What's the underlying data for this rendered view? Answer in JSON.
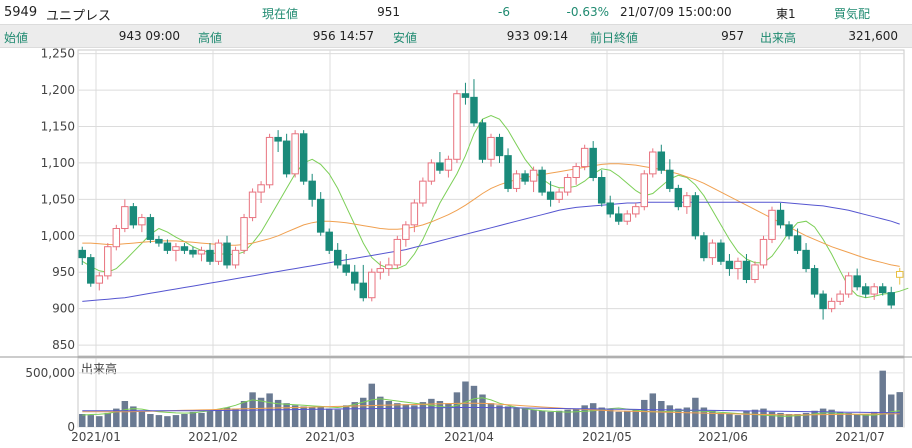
{
  "header": {
    "code": "5949",
    "name": "ユニプレス",
    "price_label": "現在値",
    "price": "951",
    "change": "-6",
    "change_pct": "-0.63%",
    "datetime": "21/07/09  15:00:00",
    "market": "東1",
    "order_book": "買気配"
  },
  "quote": {
    "open_label": "始値",
    "open": "943 09:00",
    "high_label": "高値",
    "high": "956 14:57",
    "low_label": "安値",
    "low": "933 09:14",
    "prev_close_label": "前日終値",
    "prev_close": "957",
    "volume_label": "出来高",
    "volume": "321,600"
  },
  "colors": {
    "up": "#e8737f",
    "down": "#1a8a7a",
    "ma_short": "#7ccf57",
    "ma_mid": "#f0a050",
    "ma_long": "#5555d0",
    "label": "#1f8a70",
    "today": "#e8c040"
  },
  "chart_data": {
    "type": "candlestick",
    "ylim": [
      835,
      1255
    ],
    "y_ticks": [
      "1,250",
      "1,200",
      "1,150",
      "1,100",
      "1,050",
      "1,000",
      "950",
      "900",
      "850"
    ],
    "volume_label": "出来高",
    "volume_ylim": [
      0,
      600000
    ],
    "volume_ticks": [
      "500,000",
      "0"
    ],
    "x_labels": [
      "2021/01",
      "2021/02",
      "2021/03",
      "2021/04",
      "2021/05",
      "2021/06",
      "2021/07"
    ],
    "candles": [
      [
        980,
        985,
        960,
        970
      ],
      [
        970,
        975,
        930,
        935
      ],
      [
        935,
        950,
        925,
        945
      ],
      [
        945,
        990,
        940,
        985
      ],
      [
        985,
        1015,
        980,
        1010
      ],
      [
        1010,
        1050,
        1005,
        1040
      ],
      [
        1040,
        1045,
        1010,
        1015
      ],
      [
        1015,
        1030,
        1005,
        1025
      ],
      [
        1025,
        1030,
        990,
        995
      ],
      [
        995,
        1000,
        985,
        990
      ],
      [
        990,
        995,
        975,
        980
      ],
      [
        980,
        990,
        965,
        985
      ],
      [
        985,
        990,
        975,
        980
      ],
      [
        980,
        985,
        970,
        975
      ],
      [
        975,
        985,
        965,
        980
      ],
      [
        980,
        990,
        960,
        965
      ],
      [
        965,
        995,
        960,
        990
      ],
      [
        990,
        1000,
        955,
        960
      ],
      [
        960,
        985,
        955,
        980
      ],
      [
        980,
        1030,
        975,
        1025
      ],
      [
        1025,
        1065,
        1020,
        1060
      ],
      [
        1060,
        1075,
        1045,
        1070
      ],
      [
        1070,
        1140,
        1065,
        1135
      ],
      [
        1135,
        1145,
        1115,
        1130
      ],
      [
        1130,
        1140,
        1080,
        1085
      ],
      [
        1085,
        1145,
        1080,
        1140
      ],
      [
        1140,
        1145,
        1070,
        1075
      ],
      [
        1075,
        1085,
        1040,
        1050
      ],
      [
        1050,
        1060,
        1000,
        1005
      ],
      [
        1005,
        1010,
        975,
        980
      ],
      [
        980,
        990,
        955,
        960
      ],
      [
        960,
        975,
        945,
        950
      ],
      [
        950,
        960,
        925,
        935
      ],
      [
        935,
        960,
        910,
        915
      ],
      [
        915,
        955,
        910,
        950
      ],
      [
        950,
        965,
        940,
        955
      ],
      [
        955,
        970,
        945,
        960
      ],
      [
        960,
        1000,
        955,
        995
      ],
      [
        995,
        1020,
        985,
        1015
      ],
      [
        1015,
        1050,
        1005,
        1045
      ],
      [
        1045,
        1080,
        1040,
        1075
      ],
      [
        1075,
        1105,
        1070,
        1100
      ],
      [
        1100,
        1115,
        1085,
        1090
      ],
      [
        1090,
        1110,
        1080,
        1105
      ],
      [
        1105,
        1200,
        1100,
        1195
      ],
      [
        1195,
        1210,
        1180,
        1190
      ],
      [
        1190,
        1215,
        1150,
        1155
      ],
      [
        1155,
        1160,
        1100,
        1105
      ],
      [
        1105,
        1140,
        1095,
        1135
      ],
      [
        1135,
        1140,
        1100,
        1110
      ],
      [
        1110,
        1120,
        1060,
        1065
      ],
      [
        1065,
        1090,
        1060,
        1085
      ],
      [
        1085,
        1090,
        1070,
        1075
      ],
      [
        1075,
        1095,
        1060,
        1090
      ],
      [
        1090,
        1095,
        1055,
        1060
      ],
      [
        1060,
        1075,
        1040,
        1050
      ],
      [
        1050,
        1065,
        1045,
        1060
      ],
      [
        1060,
        1085,
        1055,
        1080
      ],
      [
        1080,
        1100,
        1070,
        1095
      ],
      [
        1095,
        1125,
        1090,
        1120
      ],
      [
        1120,
        1130,
        1075,
        1080
      ],
      [
        1080,
        1090,
        1040,
        1045
      ],
      [
        1045,
        1055,
        1025,
        1030
      ],
      [
        1030,
        1040,
        1015,
        1020
      ],
      [
        1020,
        1035,
        1015,
        1030
      ],
      [
        1030,
        1045,
        1025,
        1040
      ],
      [
        1040,
        1090,
        1035,
        1085
      ],
      [
        1085,
        1120,
        1080,
        1115
      ],
      [
        1115,
        1125,
        1085,
        1090
      ],
      [
        1090,
        1105,
        1060,
        1065
      ],
      [
        1065,
        1070,
        1035,
        1040
      ],
      [
        1040,
        1060,
        1030,
        1055
      ],
      [
        1055,
        1060,
        995,
        1000
      ],
      [
        1000,
        1005,
        965,
        970
      ],
      [
        970,
        995,
        960,
        990
      ],
      [
        990,
        995,
        960,
        965
      ],
      [
        965,
        975,
        945,
        955
      ],
      [
        955,
        970,
        940,
        965
      ],
      [
        965,
        975,
        935,
        940
      ],
      [
        940,
        965,
        935,
        960
      ],
      [
        960,
        1000,
        955,
        995
      ],
      [
        995,
        1040,
        990,
        1035
      ],
      [
        1035,
        1045,
        1010,
        1015
      ],
      [
        1015,
        1020,
        995,
        1000
      ],
      [
        1000,
        1010,
        975,
        980
      ],
      [
        980,
        990,
        950,
        955
      ],
      [
        955,
        960,
        915,
        920
      ],
      [
        920,
        925,
        885,
        900
      ],
      [
        900,
        915,
        895,
        910
      ],
      [
        910,
        925,
        905,
        920
      ],
      [
        920,
        950,
        915,
        945
      ],
      [
        945,
        955,
        925,
        930
      ],
      [
        930,
        935,
        915,
        920
      ],
      [
        920,
        935,
        912,
        930
      ],
      [
        930,
        935,
        918,
        922
      ],
      [
        922,
        930,
        900,
        905
      ],
      [
        943,
        956,
        933,
        951
      ]
    ],
    "series": [
      {
        "name": "short",
        "values": [
          965,
          958,
          952,
          950,
          955,
          966,
          978,
          990,
          1002,
          1010,
          1005,
          998,
          992,
          985,
          980,
          977,
          975,
          975,
          974,
          978,
          990,
          1005,
          1025,
          1045,
          1065,
          1085,
          1100,
          1105,
          1098,
          1085,
          1065,
          1040,
          1015,
          990,
          970,
          960,
          955,
          955,
          960,
          975,
          995,
          1020,
          1045,
          1065,
          1085,
          1110,
          1140,
          1160,
          1165,
          1160,
          1145,
          1125,
          1105,
          1090,
          1078,
          1070,
          1066,
          1066,
          1068,
          1075,
          1085,
          1092,
          1090,
          1082,
          1072,
          1062,
          1055,
          1058,
          1068,
          1078,
          1083,
          1080,
          1070,
          1055,
          1035,
          1015,
          995,
          978,
          968,
          963,
          963,
          972,
          988,
          1005,
          1018,
          1020,
          1012,
          995,
          975,
          952,
          930,
          918,
          915,
          917,
          920,
          921,
          924,
          928
        ]
      },
      {
        "name": "mid",
        "values": [
          990,
          990,
          989,
          988,
          988,
          989,
          990,
          991,
          992,
          993,
          993,
          993,
          992,
          991,
          990,
          989,
          988,
          987,
          987,
          988,
          990,
          993,
          996,
          1000,
          1005,
          1010,
          1015,
          1018,
          1020,
          1020,
          1019,
          1018,
          1016,
          1014,
          1012,
          1010,
          1009,
          1009,
          1010,
          1012,
          1015,
          1019,
          1024,
          1029,
          1035,
          1042,
          1050,
          1058,
          1065,
          1070,
          1074,
          1077,
          1080,
          1082,
          1084,
          1086,
          1088,
          1090,
          1092,
          1094,
          1096,
          1098,
          1099,
          1099,
          1098,
          1097,
          1095,
          1093,
          1091,
          1088,
          1085,
          1081,
          1077,
          1072,
          1066,
          1060,
          1054,
          1048,
          1042,
          1036,
          1030,
          1024,
          1018,
          1012,
          1006,
          1000,
          995,
          990,
          985,
          981,
          977,
          973,
          969,
          966,
          963,
          960,
          958
        ]
      },
      {
        "name": "long",
        "values": [
          910,
          911,
          912,
          913,
          914,
          915,
          917,
          919,
          921,
          923,
          925,
          927,
          929,
          931,
          933,
          935,
          937,
          939,
          941,
          943,
          945,
          947,
          949,
          951,
          953,
          955,
          957,
          959,
          961,
          963,
          965,
          967,
          969,
          971,
          973,
          975,
          977,
          979,
          981,
          984,
          987,
          990,
          993,
          996,
          999,
          1002,
          1005,
          1008,
          1011,
          1014,
          1017,
          1020,
          1023,
          1026,
          1029,
          1032,
          1035,
          1037,
          1039,
          1040,
          1041,
          1042,
          1043,
          1044,
          1045,
          1045,
          1046,
          1046,
          1046,
          1046,
          1046,
          1046,
          1046,
          1046,
          1046,
          1046,
          1046,
          1046,
          1046,
          1046,
          1046,
          1046,
          1046,
          1045,
          1044,
          1043,
          1042,
          1041,
          1039,
          1037,
          1035,
          1032,
          1029,
          1026,
          1023,
          1020,
          1016
        ]
      }
    ],
    "volume_series": [
      {
        "name": "short",
        "values": [
          110000,
          115000,
          118000,
          125000,
          140000,
          160000,
          170000,
          165000,
          150000,
          140000,
          135000,
          130000,
          128000,
          130000,
          140000,
          150000,
          165000,
          180000,
          200000,
          230000,
          250000,
          240000,
          225000,
          215000,
          210000,
          205000,
          200000,
          195000,
          190000,
          185000,
          180000,
          190000,
          210000,
          230000,
          250000,
          260000,
          250000,
          240000,
          230000,
          220000,
          210000,
          200000,
          190000,
          180000,
          200000,
          230000,
          260000,
          270000,
          250000,
          220000,
          200000,
          180000,
          170000,
          160000,
          150000,
          145000,
          140000,
          138000,
          140000,
          145000,
          150000,
          160000,
          170000,
          175000,
          165000,
          155000,
          145000,
          140000,
          140000,
          145000,
          150000,
          155000,
          150000,
          145000,
          140000,
          135000,
          130000,
          125000,
          120000,
          115000,
          110000,
          105000,
          100000,
          100000,
          105000,
          110000,
          120000,
          130000,
          130000,
          125000,
          120000,
          115000,
          110000,
          110000,
          120000,
          140000,
          150000
        ]
      },
      {
        "name": "mid",
        "values": [
          140000,
          140000,
          140000,
          140000,
          140000,
          140000,
          142000,
          144000,
          146000,
          148000,
          150000,
          152000,
          154000,
          156000,
          158000,
          160000,
          162000,
          164000,
          166000,
          168000,
          170000,
          172000,
          174000,
          176000,
          178000,
          180000,
          182000,
          184000,
          186000,
          188000,
          190000,
          192000,
          194000,
          196000,
          198000,
          200000,
          202000,
          204000,
          206000,
          208000,
          210000,
          212000,
          214000,
          216000,
          218000,
          220000,
          220000,
          218000,
          214000,
          210000,
          205000,
          200000,
          195000,
          190000,
          185000,
          180000,
          175000,
          170000,
          166000,
          162000,
          158000,
          154000,
          150000,
          148000,
          146000,
          144000,
          142000,
          140000,
          138000,
          136000,
          134000,
          132000,
          130000,
          128000,
          126000,
          124000,
          122000,
          120000,
          118000,
          116000,
          115000,
          114000,
          113000,
          112000,
          112000,
          112000,
          113000,
          114000,
          115000,
          116000,
          117000,
          118000,
          119000,
          120000,
          121000,
          122000,
          123000
        ]
      },
      {
        "name": "long",
        "values": [
          150000,
          150000,
          150000,
          150000,
          150000,
          150000,
          150000,
          150000,
          150000,
          150000,
          150000,
          150000,
          150000,
          150000,
          150000,
          151000,
          152000,
          153000,
          154000,
          155000,
          156000,
          157000,
          158000,
          159000,
          160000,
          161000,
          162000,
          163000,
          164000,
          165000,
          166000,
          167000,
          168000,
          169000,
          170000,
          171000,
          172000,
          173000,
          174000,
          175000,
          176000,
          177000,
          178000,
          179000,
          180000,
          180000,
          180000,
          180000,
          179000,
          178000,
          177000,
          176000,
          175000,
          174000,
          173000,
          172000,
          171000,
          170000,
          169000,
          168000,
          167000,
          166000,
          165000,
          164000,
          163000,
          162000,
          161000,
          160000,
          159000,
          158000,
          157000,
          156000,
          155000,
          154000,
          153000,
          152000,
          151000,
          150000,
          149000,
          148000,
          147000,
          146000,
          145000,
          144000,
          143000,
          142000,
          141000,
          140000,
          139000,
          138000,
          137000,
          136000,
          135000,
          134000,
          133000,
          132000,
          131000
        ]
      }
    ],
    "volumes": [
      120000,
      110000,
      100000,
      130000,
      170000,
      240000,
      190000,
      150000,
      120000,
      110000,
      100000,
      110000,
      120000,
      140000,
      130000,
      150000,
      160000,
      180000,
      170000,
      240000,
      320000,
      270000,
      310000,
      250000,
      220000,
      200000,
      190000,
      180000,
      190000,
      170000,
      160000,
      200000,
      230000,
      270000,
      400000,
      280000,
      240000,
      220000,
      210000,
      200000,
      230000,
      260000,
      240000,
      220000,
      320000,
      420000,
      380000,
      300000,
      220000,
      200000,
      190000,
      180000,
      170000,
      160000,
      150000,
      140000,
      150000,
      160000,
      170000,
      200000,
      220000,
      180000,
      160000,
      140000,
      150000,
      160000,
      250000,
      310000,
      240000,
      200000,
      170000,
      180000,
      270000,
      180000,
      150000,
      130000,
      120000,
      110000,
      150000,
      160000,
      170000,
      140000,
      130000,
      120000,
      120000,
      130000,
      150000,
      170000,
      160000,
      140000,
      130000,
      120000,
      120000,
      140000,
      520000,
      300000,
      322000
    ]
  }
}
